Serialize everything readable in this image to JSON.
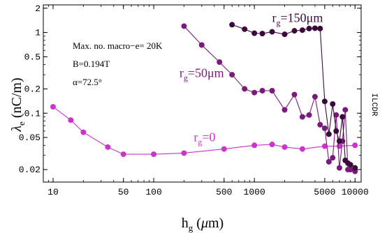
{
  "chart_data": {
    "type": "line",
    "xlabel": "h_g (μm)",
    "ylabel": "λ_e (nC/m)",
    "xscale": "log",
    "yscale": "log",
    "xlim": [
      8,
      11500
    ],
    "ylim": [
      0.014,
      2.2
    ],
    "x_ticks": [
      {
        "v": 10,
        "label": "10"
      },
      {
        "v": 50,
        "label": "50"
      },
      {
        "v": 100,
        "label": "100"
      },
      {
        "v": 500,
        "label": "500"
      },
      {
        "v": 1000,
        "label": "1000"
      },
      {
        "v": 5000,
        "label": "5000"
      },
      {
        "v": 10000,
        "label": "10000"
      }
    ],
    "y_ticks": [
      {
        "v": 0.02,
        "label": "0.02"
      },
      {
        "v": 0.05,
        "label": "0.05"
      },
      {
        "v": 0.1,
        "label": "0.1"
      },
      {
        "v": 0.2,
        "label": "0.2"
      },
      {
        "v": 0.5,
        "label": "0.5"
      },
      {
        "v": 1,
        "label": "1"
      },
      {
        "v": 2,
        "label": "2"
      }
    ],
    "annotations": [
      "Max. no. macro−e= 20K",
      "B=0.194T",
      "α=72.5°"
    ],
    "side_text": "ILCDR",
    "series": [
      {
        "name": "r_g=0",
        "label_sub": "g",
        "label_main": "r",
        "label_rest": "=0",
        "color": "#cc33cc",
        "x": [
          10,
          15,
          20,
          35,
          50,
          100,
          200,
          500,
          1000,
          1500,
          2000,
          3000,
          5000,
          7000,
          10000
        ],
        "y": [
          0.12,
          0.082,
          0.058,
          0.038,
          0.031,
          0.031,
          0.032,
          0.036,
          0.04,
          0.041,
          0.038,
          0.036,
          0.039,
          0.039,
          0.04
        ]
      },
      {
        "name": "r_g=50μm",
        "label_main": "r",
        "label_sub": "g",
        "label_rest": "=50μm",
        "color": "#7a1a7a",
        "x": [
          200,
          300,
          450,
          600,
          800,
          1000,
          1200,
          1500,
          2000,
          2500,
          3000,
          3500,
          4000,
          4500,
          5000,
          5500,
          6000,
          6500,
          7000,
          7500,
          8000,
          8500,
          9000,
          10000
        ],
        "y": [
          1.2,
          0.7,
          0.43,
          0.3,
          0.2,
          0.18,
          0.19,
          0.19,
          0.11,
          0.17,
          0.09,
          0.095,
          0.16,
          0.072,
          0.065,
          0.025,
          0.028,
          0.095,
          0.021,
          0.045,
          0.11,
          0.02,
          0.02,
          0.019
        ]
      },
      {
        "name": "r_g=150μm",
        "label_main": "r",
        "label_sub": "g",
        "label_rest": "=150μm",
        "color": "#3a0a3a",
        "x": [
          600,
          800,
          1000,
          1200,
          1500,
          2000,
          2500,
          3000,
          3500,
          4000,
          4500,
          5000,
          5500,
          6000,
          6500,
          7000,
          7500,
          8000,
          8500,
          9000,
          10000
        ],
        "y": [
          1.25,
          1.1,
          0.98,
          0.97,
          1.02,
          0.95,
          1.05,
          1.07,
          1.12,
          1.13,
          1.12,
          0.14,
          0.055,
          0.13,
          0.06,
          0.045,
          0.09,
          0.026,
          0.024,
          0.023,
          0.021
        ]
      }
    ]
  }
}
